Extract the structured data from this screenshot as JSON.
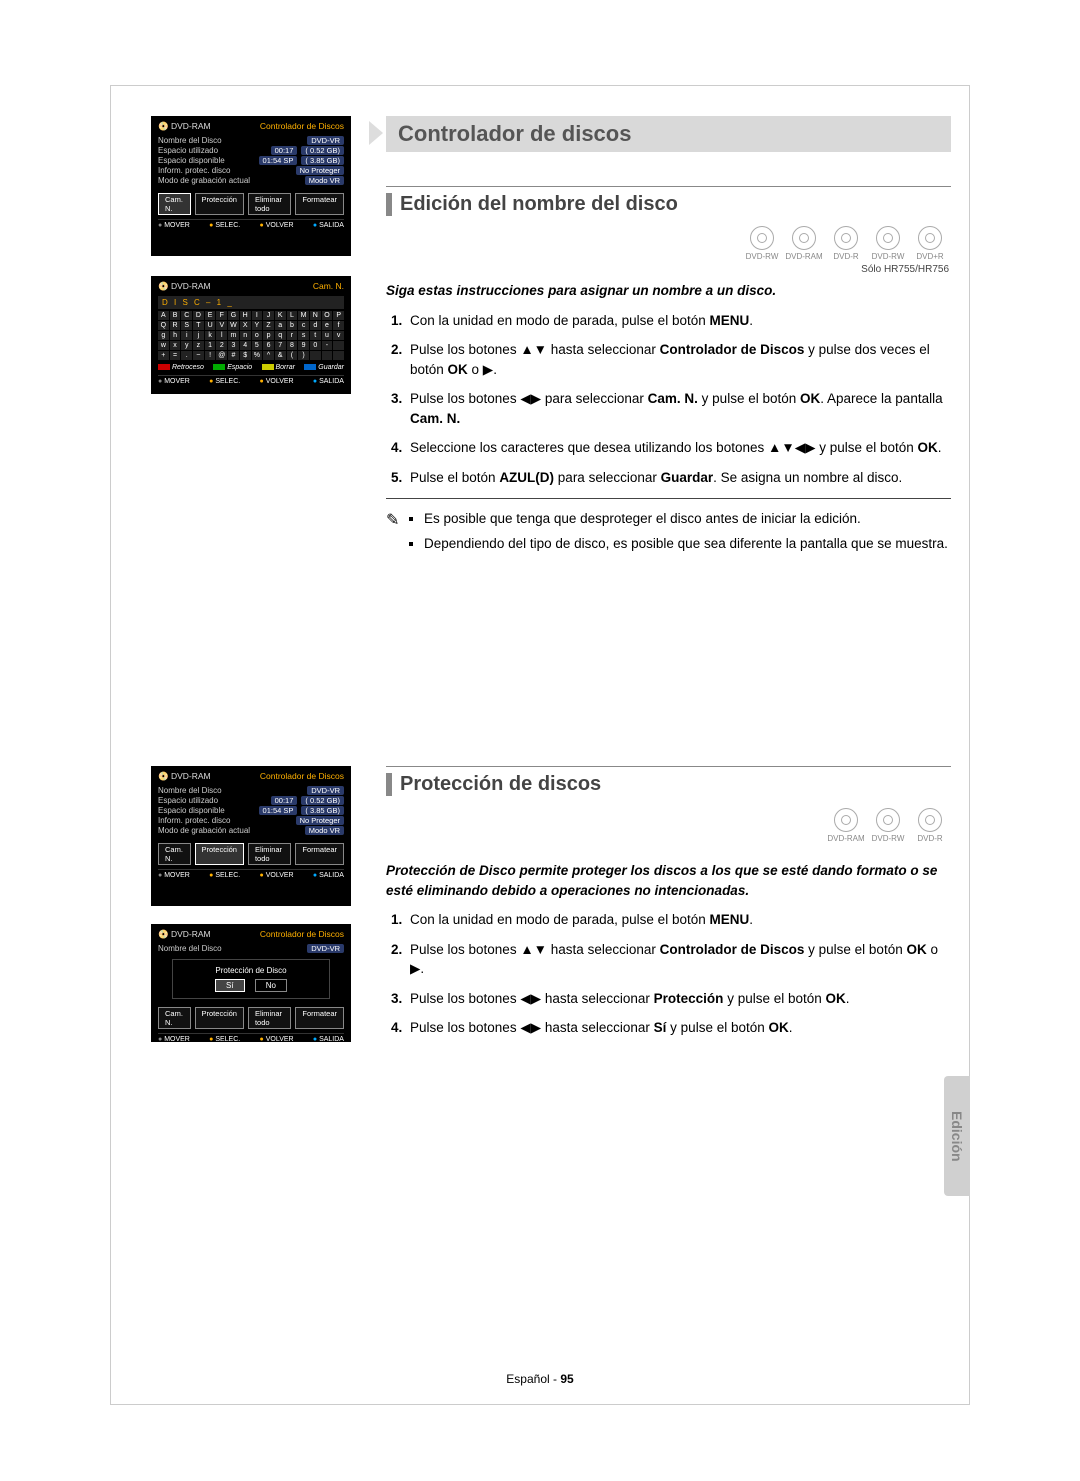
{
  "page": {
    "title": "Controlador de discos",
    "footer_lang": "Español",
    "footer_dash": " - ",
    "footer_page": "95",
    "side_tab": "Edición"
  },
  "sections": {
    "edit_name": {
      "heading": "Edición del nombre del disco",
      "disc_note": "Sólo HR755/HR756",
      "intro": "Siga estas instrucciones para asignar un nombre a un disco.",
      "steps": [
        "Con la unidad en modo de parada, pulse el botón MENU.",
        "Pulse los botones ▲▼ hasta seleccionar Controlador de Discos y pulse dos veces el botón OK o ▶.",
        "Pulse los botones ◀▶ para seleccionar Cam. N. y pulse el botón OK. Aparece la pantalla Cam. N.",
        "Seleccione los caracteres que desea utilizando los botones ▲▼◀▶ y pulse el botón OK.",
        "Pulse el botón AZUL(D) para seleccionar Guardar. Se asigna un nombre al disco."
      ],
      "notes": [
        "Es posible que tenga que desproteger el disco antes de iniciar la edición.",
        "Dependiendo del tipo de disco, es posible que sea diferente la pantalla que se muestra."
      ],
      "disc_icons": [
        "DVD-RW",
        "DVD-RAM",
        "DVD-R",
        "DVD-RW",
        "DVD+R"
      ]
    },
    "protection": {
      "heading": "Protección de discos",
      "intro": "Protección de Disco permite proteger los discos a los que se esté dando formato o se esté eliminando debido a operaciones no intencionadas.",
      "steps": [
        "Con la unidad en modo de parada, pulse el botón MENU.",
        "Pulse los botones ▲▼ hasta seleccionar Controlador de Discos y pulse el botón OK o ▶.",
        "Pulse los botones ◀▶ hasta seleccionar Protección y pulse el botón OK.",
        "Pulse los botones ◀▶ hasta seleccionar Sí y pulse el botón OK."
      ],
      "disc_icons": [
        "DVD-RAM",
        "DVD-RW",
        "DVD-R"
      ]
    }
  },
  "shots": {
    "common_footer": {
      "mover": "MOVER",
      "selec": "SELEC.",
      "volver": "VOLVER",
      "salida": "SALIDA"
    },
    "s1": {
      "hdr_l": "DVD-RAM",
      "hdr_r": "Controlador de Discos",
      "rows": [
        {
          "lab": "Nombre del Disco",
          "v1": "DVD-VR",
          "v2": ""
        },
        {
          "lab": "Espacio utilizado",
          "v1": "00:17",
          "v2": "( 0.52 GB)"
        },
        {
          "lab": "Espacio disponible",
          "v1": "01:54 SP",
          "v2": "( 3.85 GB)"
        },
        {
          "lab": "Inform. protec. disco",
          "v1": "No Proteger",
          "v2": ""
        },
        {
          "lab": "Modo de grabación actual",
          "v1": "Modo VR",
          "v2": ""
        }
      ],
      "btns": [
        "Cam. N.",
        "Protección",
        "Eliminar todo",
        "Formatear"
      ],
      "sel": 0
    },
    "s2": {
      "hdr_l": "DVD-RAM",
      "hdr_r": "Cam. N.",
      "nameline": "D I S C – 1 _",
      "kbd": [
        "A",
        "B",
        "C",
        "D",
        "E",
        "F",
        "G",
        "H",
        "I",
        "J",
        "K",
        "L",
        "M",
        "N",
        "O",
        "P",
        "Q",
        "R",
        "S",
        "T",
        "U",
        "V",
        "W",
        "X",
        "Y",
        "Z",
        "a",
        "b",
        "c",
        "d",
        "e",
        "f",
        "g",
        "h",
        "i",
        "j",
        "k",
        "l",
        "m",
        "n",
        "o",
        "p",
        "q",
        "r",
        "s",
        "t",
        "u",
        "v",
        "w",
        "x",
        "y",
        "z",
        "1",
        "2",
        "3",
        "4",
        "5",
        "6",
        "7",
        "8",
        "9",
        "0",
        "-",
        " ",
        "+",
        "=",
        ".",
        "~",
        "!",
        "@",
        "#",
        "$",
        "%",
        "^",
        "&",
        "(",
        ")",
        " ",
        " ",
        " "
      ],
      "legend": {
        "a": "Retroceso",
        "b": "Espacio",
        "c": "Borrar",
        "d": "Guardar"
      }
    },
    "s3": {
      "hdr_l": "DVD-RAM",
      "hdr_r": "Controlador de Discos",
      "rows": [
        {
          "lab": "Nombre del Disco",
          "v1": "DVD-VR",
          "v2": ""
        },
        {
          "lab": "Espacio utilizado",
          "v1": "00:17",
          "v2": "( 0.52 GB)"
        },
        {
          "lab": "Espacio disponible",
          "v1": "01:54 SP",
          "v2": "( 3.85 GB)"
        },
        {
          "lab": "Inform. protec. disco",
          "v1": "No Proteger",
          "v2": ""
        },
        {
          "lab": "Modo de grabación actual",
          "v1": "Modo VR",
          "v2": ""
        }
      ],
      "btns": [
        "Cam. N.",
        "Protección",
        "Eliminar todo",
        "Formatear"
      ],
      "sel": 1
    },
    "s4": {
      "hdr_l": "DVD-RAM",
      "hdr_r": "Controlador de Discos",
      "row": {
        "lab": "Nombre del Disco",
        "v1": "DVD-VR"
      },
      "dlg_title": "Protección de Disco",
      "dlg_yes": "Sí",
      "dlg_no": "No",
      "btns": [
        "Cam. N.",
        "Protección",
        "Eliminar todo",
        "Formatear"
      ]
    }
  },
  "colors": {
    "title_bg": "#d9d9d9",
    "accent": "#888888",
    "osd_orange": "#ffb000",
    "osd_pill": "#2a3a6a"
  }
}
